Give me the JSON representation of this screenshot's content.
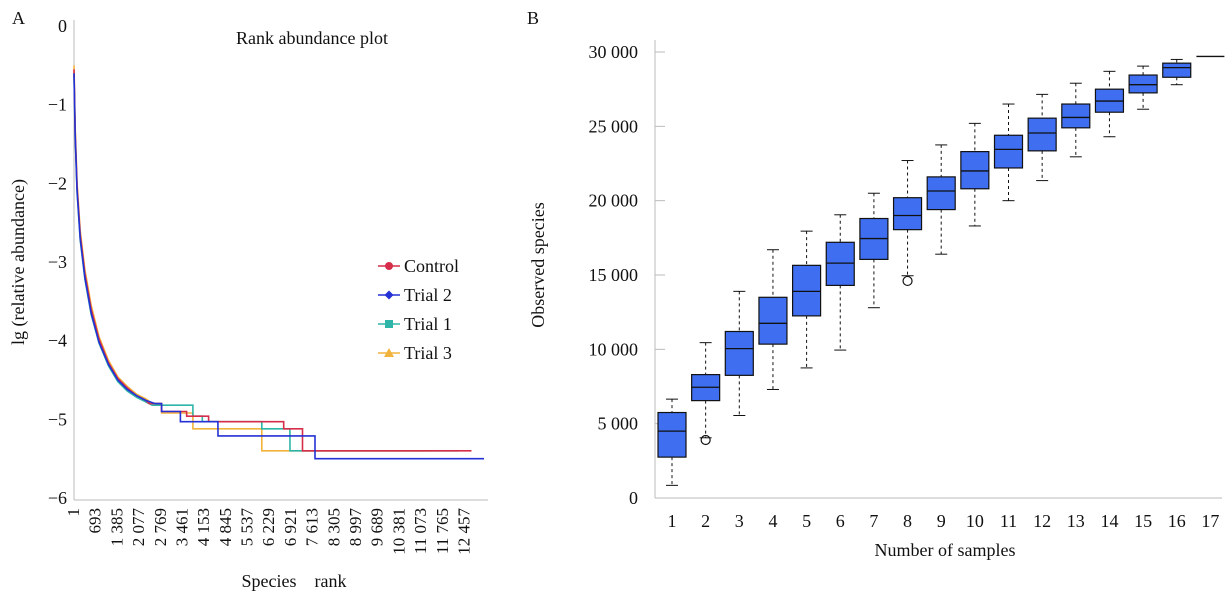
{
  "chart_data": [
    {
      "panel_label": "A",
      "type": "line",
      "title": "Rank abundance plot",
      "xlabel": "Species    rank",
      "ylabel": "lg (relative abundance)",
      "xlim": [
        1,
        13100
      ],
      "ylim": [
        -6,
        0
      ],
      "x_ticks": [
        "1",
        "693",
        "1 385",
        "2 077",
        "2 769",
        "3 461",
        "4 153",
        "4 845",
        "5 537",
        "6 229",
        "6 921",
        "7 613",
        "8 305",
        "8 997",
        "9 689",
        "10 381",
        "11 073",
        "11 765",
        "12 457"
      ],
      "y_ticks": [
        "0",
        "−1",
        "−2",
        "−3",
        "−4",
        "−5",
        "−6"
      ],
      "legend_position": "right",
      "series": [
        {
          "name": "Control",
          "color": "#d62d4a",
          "marker": "circle",
          "points": [
            [
              1,
              -0.55
            ],
            [
              40,
              -1.35
            ],
            [
              100,
              -2.05
            ],
            [
              200,
              -2.65
            ],
            [
              350,
              -3.15
            ],
            [
              550,
              -3.6
            ],
            [
              800,
              -3.98
            ],
            [
              1100,
              -4.28
            ],
            [
              1400,
              -4.48
            ],
            [
              1700,
              -4.6
            ],
            [
              2000,
              -4.7
            ],
            [
              2300,
              -4.76
            ],
            [
              2400,
              -4.8
            ],
            [
              2800,
              -4.8
            ],
            [
              2801,
              -4.9
            ],
            [
              3600,
              -4.9
            ],
            [
              3601,
              -4.96
            ],
            [
              4300,
              -4.96
            ],
            [
              4301,
              -5.03
            ],
            [
              6700,
              -5.03
            ],
            [
              6701,
              -5.12
            ],
            [
              7300,
              -5.12
            ],
            [
              7301,
              -5.4
            ],
            [
              12700,
              -5.4
            ]
          ]
        },
        {
          "name": "Trial 2",
          "color": "#2431d4",
          "marker": "diamond",
          "points": [
            [
              1,
              -0.6
            ],
            [
              40,
              -1.4
            ],
            [
              100,
              -2.1
            ],
            [
              200,
              -2.7
            ],
            [
              350,
              -3.2
            ],
            [
              550,
              -3.65
            ],
            [
              800,
              -4.02
            ],
            [
              1100,
              -4.3
            ],
            [
              1400,
              -4.5
            ],
            [
              1700,
              -4.62
            ],
            [
              2000,
              -4.7
            ],
            [
              2300,
              -4.76
            ],
            [
              2600,
              -4.8
            ],
            [
              2800,
              -4.8
            ],
            [
              2801,
              -4.9
            ],
            [
              3400,
              -4.9
            ],
            [
              3401,
              -5.03
            ],
            [
              4600,
              -5.03
            ],
            [
              4601,
              -5.21
            ],
            [
              7700,
              -5.21
            ],
            [
              7701,
              -5.5
            ],
            [
              13100,
              -5.5
            ]
          ]
        },
        {
          "name": "Trial 1",
          "color": "#2fb5a8",
          "marker": "square",
          "points": [
            [
              1,
              -0.62
            ],
            [
              40,
              -1.42
            ],
            [
              100,
              -2.12
            ],
            [
              200,
              -2.72
            ],
            [
              350,
              -3.22
            ],
            [
              550,
              -3.67
            ],
            [
              800,
              -4.03
            ],
            [
              1100,
              -4.32
            ],
            [
              1400,
              -4.52
            ],
            [
              1700,
              -4.64
            ],
            [
              2000,
              -4.72
            ],
            [
              2300,
              -4.78
            ],
            [
              2500,
              -4.82
            ],
            [
              3800,
              -4.82
            ],
            [
              3801,
              -4.96
            ],
            [
              4100,
              -4.96
            ],
            [
              4101,
              -5.03
            ],
            [
              6000,
              -5.03
            ],
            [
              6001,
              -5.12
            ],
            [
              6900,
              -5.12
            ],
            [
              6901,
              -5.4
            ],
            [
              12300,
              -5.4
            ]
          ]
        },
        {
          "name": "Trial 3",
          "color": "#f2b33d",
          "marker": "triangle",
          "points": [
            [
              1,
              -0.5
            ],
            [
              40,
              -1.3
            ],
            [
              100,
              -2.0
            ],
            [
              200,
              -2.6
            ],
            [
              350,
              -3.1
            ],
            [
              550,
              -3.55
            ],
            [
              800,
              -3.95
            ],
            [
              1100,
              -4.25
            ],
            [
              1400,
              -4.46
            ],
            [
              1700,
              -4.58
            ],
            [
              2000,
              -4.68
            ],
            [
              2300,
              -4.74
            ],
            [
              2500,
              -4.8
            ],
            [
              2800,
              -4.8
            ],
            [
              2801,
              -4.92
            ],
            [
              3800,
              -4.92
            ],
            [
              3801,
              -5.12
            ],
            [
              6000,
              -5.12
            ],
            [
              6001,
              -5.4
            ],
            [
              11400,
              -5.4
            ]
          ]
        }
      ]
    },
    {
      "panel_label": "B",
      "type": "box",
      "xlabel": "Number of samples",
      "ylabel": "Observed species",
      "ylim": [
        0,
        30000
      ],
      "y_ticks": [
        "0",
        "5 000",
        "10 000",
        "15 000",
        "20 000",
        "25 000",
        "30 000"
      ],
      "categories": [
        "1",
        "2",
        "3",
        "4",
        "5",
        "6",
        "7",
        "8",
        "9",
        "10",
        "11",
        "12",
        "13",
        "14",
        "15",
        "16",
        "17"
      ],
      "box_color": "#3f6ff0",
      "boxes": [
        {
          "min": 850,
          "q1": 2750,
          "median": 4500,
          "q3": 5750,
          "max": 6650,
          "outliers": []
        },
        {
          "min": 4050,
          "q1": 6550,
          "median": 7450,
          "q3": 8300,
          "max": 10450,
          "outliers": [
            3900
          ]
        },
        {
          "min": 5550,
          "q1": 8250,
          "median": 10050,
          "q3": 11200,
          "max": 13900,
          "outliers": []
        },
        {
          "min": 7300,
          "q1": 10350,
          "median": 11750,
          "q3": 13500,
          "max": 16700,
          "outliers": []
        },
        {
          "min": 8750,
          "q1": 12250,
          "median": 13900,
          "q3": 15650,
          "max": 17950,
          "outliers": []
        },
        {
          "min": 9950,
          "q1": 14300,
          "median": 15800,
          "q3": 17200,
          "max": 19050,
          "outliers": []
        },
        {
          "min": 12800,
          "q1": 16050,
          "median": 17450,
          "q3": 18800,
          "max": 20500,
          "outliers": []
        },
        {
          "min": 14950,
          "q1": 18050,
          "median": 19000,
          "q3": 20200,
          "max": 22700,
          "outliers": [
            14600
          ]
        },
        {
          "min": 16400,
          "q1": 19400,
          "median": 20650,
          "q3": 21600,
          "max": 23750,
          "outliers": []
        },
        {
          "min": 18300,
          "q1": 20800,
          "median": 22000,
          "q3": 23300,
          "max": 25200,
          "outliers": []
        },
        {
          "min": 20000,
          "q1": 22200,
          "median": 23450,
          "q3": 24400,
          "max": 26500,
          "outliers": []
        },
        {
          "min": 21350,
          "q1": 23350,
          "median": 24550,
          "q3": 25550,
          "max": 27150,
          "outliers": []
        },
        {
          "min": 22950,
          "q1": 24900,
          "median": 25600,
          "q3": 26500,
          "max": 27900,
          "outliers": []
        },
        {
          "min": 24300,
          "q1": 25950,
          "median": 26700,
          "q3": 27500,
          "max": 28700,
          "outliers": []
        },
        {
          "min": 26150,
          "q1": 27250,
          "median": 27800,
          "q3": 28450,
          "max": 29050,
          "outliers": []
        },
        {
          "min": 27800,
          "q1": 28300,
          "median": 28950,
          "q3": 29250,
          "max": 29500,
          "outliers": []
        },
        {
          "min": 29700,
          "q1": 29700,
          "median": 29700,
          "q3": 29700,
          "max": 29700,
          "outliers": []
        }
      ]
    }
  ]
}
